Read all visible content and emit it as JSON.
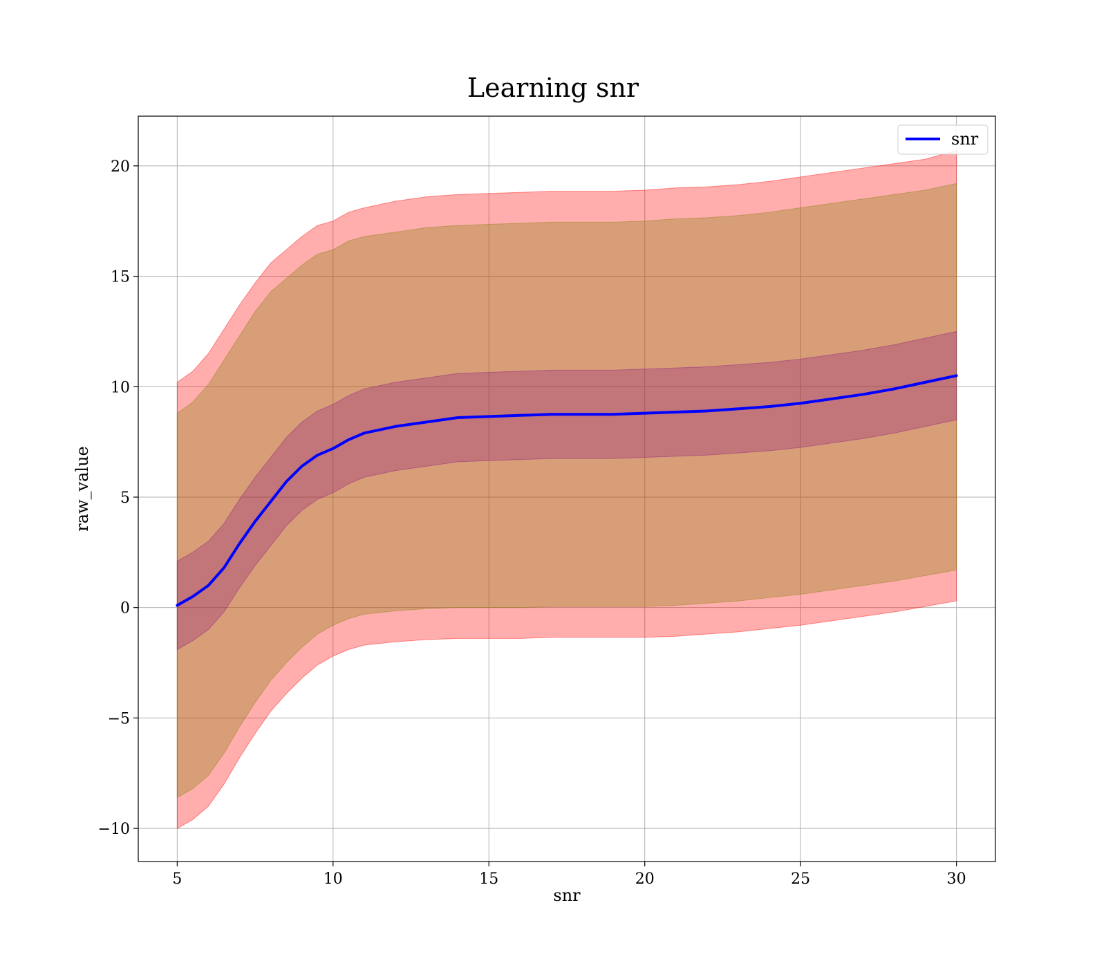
{
  "chart_data": {
    "type": "line",
    "title": "Learning snr",
    "xlabel": "snr",
    "ylabel": "raw_value",
    "xlim": [
      3.75,
      31.25
    ],
    "ylim": [
      -11.5,
      22.25
    ],
    "xticks": [
      5,
      10,
      15,
      20,
      25,
      30
    ],
    "yticks": [
      -10,
      -5,
      0,
      5,
      10,
      15,
      20
    ],
    "ytick_labels": [
      "−10",
      "−5",
      "0",
      "5",
      "10",
      "15",
      "20"
    ],
    "grid": true,
    "legend": {
      "placement": "top-right",
      "entries": [
        "snr"
      ]
    },
    "x": [
      5,
      5.5,
      6,
      6.5,
      7,
      7.5,
      8,
      8.5,
      9,
      9.5,
      10,
      10.5,
      11,
      12,
      13,
      14,
      15,
      16,
      17,
      18,
      19,
      20,
      21,
      22,
      23,
      24,
      25,
      26,
      27,
      28,
      29,
      30
    ],
    "series": [
      {
        "name": "snr",
        "color": "#0000ff",
        "values": [
          0.1,
          0.5,
          1.0,
          1.8,
          2.9,
          3.9,
          4.8,
          5.7,
          6.4,
          6.9,
          7.2,
          7.6,
          7.9,
          8.2,
          8.4,
          8.6,
          8.65,
          8.7,
          8.75,
          8.75,
          8.75,
          8.8,
          8.85,
          8.9,
          9.0,
          9.1,
          9.25,
          9.45,
          9.65,
          9.9,
          10.2,
          10.5
        ]
      }
    ],
    "bands": [
      {
        "color": "#ff0000",
        "opacity": 0.32,
        "upper": [
          10.2,
          10.7,
          11.5,
          12.6,
          13.7,
          14.7,
          15.6,
          16.2,
          16.8,
          17.3,
          17.5,
          17.9,
          18.1,
          18.4,
          18.6,
          18.7,
          18.75,
          18.8,
          18.85,
          18.85,
          18.85,
          18.9,
          19.0,
          19.05,
          19.15,
          19.3,
          19.5,
          19.7,
          19.9,
          20.1,
          20.3,
          20.7
        ],
        "lower": [
          -10.0,
          -9.6,
          -9.0,
          -8.0,
          -6.8,
          -5.7,
          -4.7,
          -3.9,
          -3.2,
          -2.6,
          -2.2,
          -1.9,
          -1.7,
          -1.55,
          -1.45,
          -1.4,
          -1.4,
          -1.4,
          -1.35,
          -1.35,
          -1.35,
          -1.35,
          -1.3,
          -1.2,
          -1.1,
          -0.95,
          -0.8,
          -0.6,
          -0.4,
          -0.2,
          0.05,
          0.3
        ]
      },
      {
        "color": "#7f7f00",
        "opacity": 0.3,
        "upper": [
          8.8,
          9.3,
          10.1,
          11.2,
          12.3,
          13.4,
          14.3,
          14.9,
          15.5,
          16.0,
          16.2,
          16.6,
          16.8,
          17.0,
          17.2,
          17.3,
          17.35,
          17.4,
          17.45,
          17.45,
          17.45,
          17.5,
          17.6,
          17.65,
          17.75,
          17.9,
          18.1,
          18.3,
          18.5,
          18.7,
          18.9,
          19.2
        ],
        "lower": [
          -8.6,
          -8.2,
          -7.6,
          -6.6,
          -5.4,
          -4.3,
          -3.3,
          -2.5,
          -1.8,
          -1.2,
          -0.8,
          -0.5,
          -0.3,
          -0.15,
          -0.05,
          0.0,
          0.0,
          0.0,
          0.05,
          0.05,
          0.05,
          0.05,
          0.1,
          0.2,
          0.3,
          0.45,
          0.6,
          0.8,
          1.0,
          1.2,
          1.45,
          1.7
        ]
      },
      {
        "color": "#7f0080",
        "opacity": 0.25,
        "upper": [
          2.1,
          2.5,
          3.0,
          3.8,
          4.9,
          5.9,
          6.8,
          7.7,
          8.4,
          8.9,
          9.2,
          9.6,
          9.9,
          10.2,
          10.4,
          10.6,
          10.65,
          10.7,
          10.75,
          10.75,
          10.75,
          10.8,
          10.85,
          10.9,
          11.0,
          11.1,
          11.25,
          11.45,
          11.65,
          11.9,
          12.2,
          12.5
        ],
        "lower": [
          -1.9,
          -1.5,
          -1.0,
          -0.2,
          0.9,
          1.9,
          2.8,
          3.7,
          4.4,
          4.9,
          5.2,
          5.6,
          5.9,
          6.2,
          6.4,
          6.6,
          6.65,
          6.7,
          6.75,
          6.75,
          6.75,
          6.8,
          6.85,
          6.9,
          7.0,
          7.1,
          7.25,
          7.45,
          7.65,
          7.9,
          8.2,
          8.5
        ]
      }
    ]
  }
}
